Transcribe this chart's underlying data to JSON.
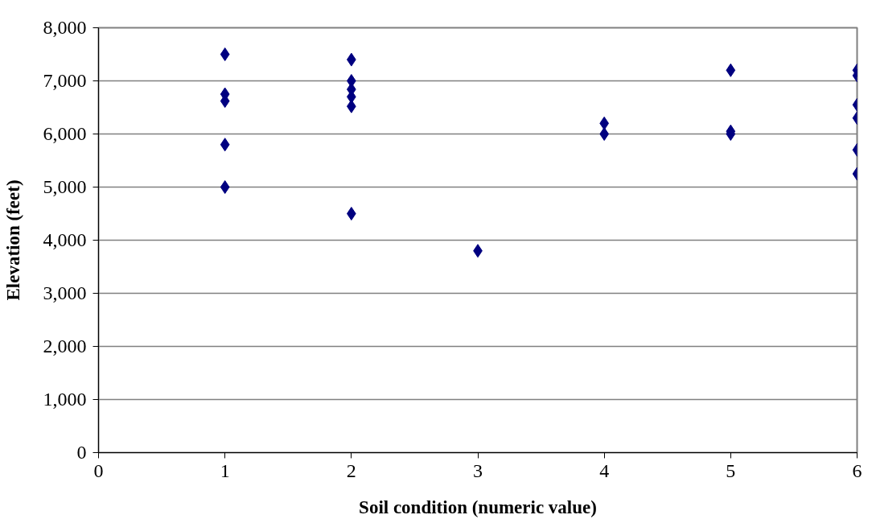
{
  "chart_data": {
    "type": "scatter",
    "xlabel": "Soil condition (numeric value)",
    "ylabel": "Elevation (feet)",
    "x": [
      1,
      1,
      1,
      1,
      1,
      2,
      2,
      2,
      2,
      2,
      2,
      3,
      4,
      4,
      5,
      5,
      5,
      6,
      6,
      6,
      6,
      6,
      6
    ],
    "series": [
      {
        "color": "#000080",
        "values": [
          7500,
          6750,
          6620,
          5800,
          5000,
          7400,
          7000,
          6840,
          6700,
          6520,
          4500,
          3800,
          6200,
          6000,
          7200,
          6050,
          6000,
          7200,
          7100,
          6550,
          6300,
          5700,
          5250
        ]
      }
    ],
    "xlim": [
      0,
      6
    ],
    "xticks": [
      0,
      1,
      2,
      3,
      4,
      5,
      6
    ],
    "ylim": [
      0,
      8000
    ],
    "yticks": [
      {
        "value": 0,
        "label": "0"
      },
      {
        "value": 1000,
        "label": "1,000"
      },
      {
        "value": 2000,
        "label": "2,000"
      },
      {
        "value": 3000,
        "label": "3,000"
      },
      {
        "value": 4000,
        "label": "4,000"
      },
      {
        "value": 5000,
        "label": "5,000"
      },
      {
        "value": 6000,
        "label": "6,000"
      },
      {
        "value": 7000,
        "label": "7,000"
      },
      {
        "value": 8000,
        "label": "8,000"
      }
    ],
    "grid": "y",
    "marker": "diamond"
  }
}
